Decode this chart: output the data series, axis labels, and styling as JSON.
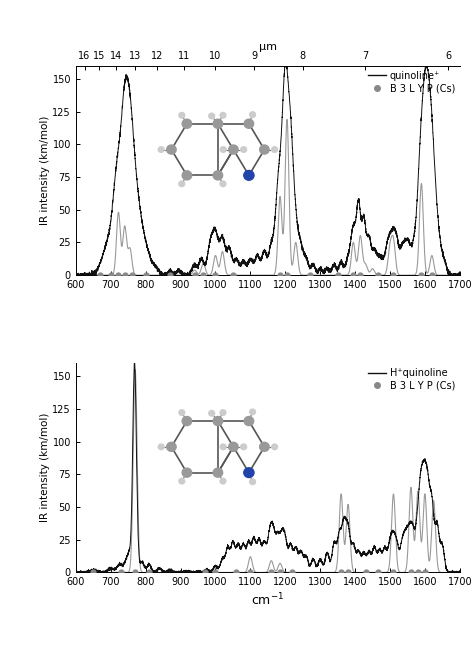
{
  "fig_width": 4.74,
  "fig_height": 6.58,
  "dpi": 100,
  "xlim": [
    600,
    1700
  ],
  "ylim": [
    0,
    160
  ],
  "ylabel": "IR intensity (km/mol)",
  "top_xlabel": "μm",
  "xticks": [
    600,
    700,
    800,
    900,
    1000,
    1100,
    1200,
    1300,
    1400,
    1500,
    1600,
    1700
  ],
  "yticks": [
    0,
    25,
    50,
    75,
    100,
    125,
    150
  ],
  "panel1_legend_line": "quinoline⁺",
  "panel1_legend_dot": "B 3 L Y P (Cs)",
  "panel2_legend_line": "H⁺quinoline",
  "panel2_legend_dot": "B 3 L Y P (Cs)",
  "line_color": "#111111",
  "stick_color": "#999999",
  "dot_color": "#888888",
  "bg_color": "#ffffff",
  "p1_gauss_sticks": [
    [
      722,
      48
    ],
    [
      740,
      37
    ],
    [
      755,
      20
    ],
    [
      940,
      4
    ],
    [
      965,
      9
    ],
    [
      1000,
      15
    ],
    [
      1020,
      18
    ],
    [
      1185,
      60
    ],
    [
      1205,
      119
    ],
    [
      1230,
      25
    ],
    [
      1395,
      25
    ],
    [
      1415,
      30
    ],
    [
      1430,
      8
    ],
    [
      1450,
      5
    ],
    [
      1500,
      20
    ],
    [
      1510,
      25
    ],
    [
      1590,
      70
    ],
    [
      1620,
      15
    ]
  ],
  "p1_dots": [
    [
      668,
      0
    ],
    [
      700,
      0
    ],
    [
      722,
      0
    ],
    [
      740,
      0
    ],
    [
      760,
      0
    ],
    [
      800,
      0
    ],
    [
      870,
      0
    ],
    [
      940,
      0
    ],
    [
      965,
      0
    ],
    [
      1000,
      0
    ],
    [
      1050,
      0
    ],
    [
      1185,
      0
    ],
    [
      1205,
      0
    ],
    [
      1270,
      0
    ],
    [
      1350,
      0
    ],
    [
      1395,
      0
    ],
    [
      1415,
      0
    ],
    [
      1465,
      0
    ],
    [
      1510,
      0
    ],
    [
      1590,
      0
    ],
    [
      1620,
      0
    ]
  ],
  "p2_gauss_sticks": [
    [
      770,
      155
    ],
    [
      1100,
      12
    ],
    [
      1160,
      9
    ],
    [
      1185,
      7
    ],
    [
      1360,
      60
    ],
    [
      1380,
      52
    ],
    [
      1510,
      60
    ],
    [
      1560,
      65
    ],
    [
      1580,
      62
    ],
    [
      1600,
      60
    ],
    [
      1625,
      55
    ]
  ],
  "p2_dots": [
    [
      650,
      0
    ],
    [
      730,
      0
    ],
    [
      770,
      0
    ],
    [
      810,
      0
    ],
    [
      970,
      0
    ],
    [
      1000,
      0
    ],
    [
      1060,
      0
    ],
    [
      1100,
      0
    ],
    [
      1160,
      0
    ],
    [
      1185,
      0
    ],
    [
      1220,
      0
    ],
    [
      1360,
      0
    ],
    [
      1380,
      0
    ],
    [
      1430,
      0
    ],
    [
      1465,
      0
    ],
    [
      1510,
      0
    ],
    [
      1560,
      0
    ],
    [
      1580,
      0
    ],
    [
      1600,
      0
    ]
  ]
}
